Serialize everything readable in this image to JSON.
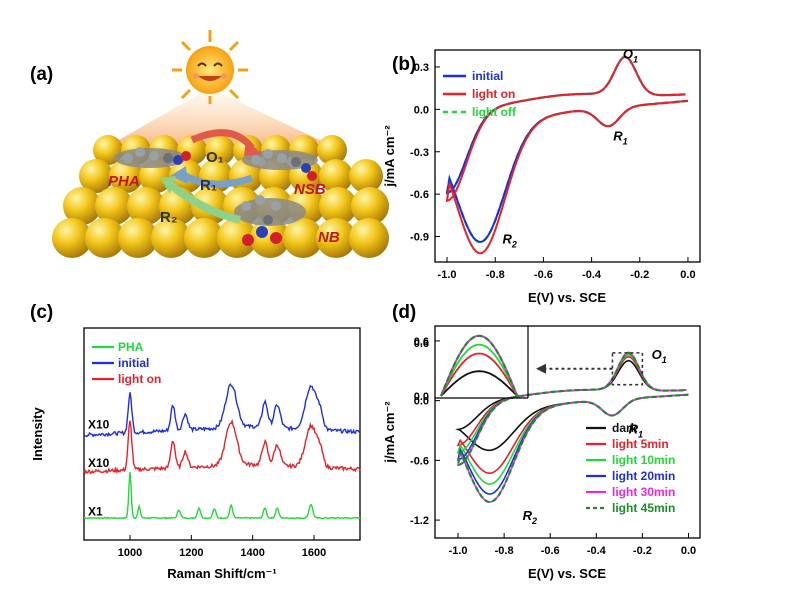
{
  "panels": {
    "a": {
      "label": "(a)",
      "molecules": [
        "PHA",
        "NSB",
        "NB"
      ],
      "reactions": [
        "O₁",
        "R₁",
        "R₂"
      ]
    }
  },
  "chart_data": [
    {
      "id": "b",
      "panel_label": "(b)",
      "type": "line",
      "xlabel": "E(V) vs. SCE",
      "ylabel": "j/mA cm⁻²",
      "xlim": [
        -1.05,
        0.05
      ],
      "ylim": [
        -1.08,
        0.42
      ],
      "xticks": [
        -1.0,
        -0.8,
        -0.6,
        -0.4,
        -0.2,
        0.0
      ],
      "xtick_labels": [
        "-1.0",
        "-0.8",
        "-0.6",
        "-0.4",
        "-0.2",
        "0.0"
      ],
      "yticks": [
        0.3,
        0.0,
        -0.3,
        -0.6,
        -0.9
      ],
      "ytick_labels": [
        "0.3",
        "0.0",
        "-0.3",
        "-0.6",
        "-0.9"
      ],
      "legend_position": "top-left",
      "annotations": [
        {
          "text": "O",
          "sub": "1",
          "x": -0.27,
          "y": 0.36
        },
        {
          "text": "R",
          "sub": "1",
          "x": -0.31,
          "y": -0.22
        },
        {
          "text": "R",
          "sub": "2",
          "x": -0.77,
          "y": -0.95
        }
      ],
      "series": [
        {
          "name": "initial",
          "color": "#1f2fe0",
          "dash": "solid",
          "scale": 1.0
        },
        {
          "name": "light on",
          "color": "#e8212a",
          "dash": "solid",
          "scale": 1.0,
          "r2_peak": -0.99
        },
        {
          "name": "light off",
          "color": "#22d83a",
          "dash": "dashed",
          "scale": 1.0
        }
      ]
    },
    {
      "id": "c",
      "panel_label": "(c)",
      "type": "line",
      "xlabel": "Raman Shift/cm⁻¹",
      "ylabel": "Intensity",
      "xlim": [
        850,
        1750
      ],
      "xticks": [
        1000,
        1200,
        1400,
        1600
      ],
      "xtick_labels": [
        "1000",
        "1200",
        "1400",
        "1600"
      ],
      "legend_position": "top-left",
      "series": [
        {
          "name": "PHA",
          "color": "#22d83a",
          "multiplier": "X1",
          "offset": 0.0,
          "amp": 0.55,
          "baseline": 0.0,
          "peaks": [
            [
              1000,
              1.0,
              4
            ],
            [
              1030,
              0.25,
              4
            ],
            [
              1160,
              0.18,
              5
            ],
            [
              1225,
              0.22,
              5
            ],
            [
              1275,
              0.2,
              5
            ],
            [
              1330,
              0.28,
              5
            ],
            [
              1440,
              0.22,
              5
            ],
            [
              1480,
              0.22,
              5
            ],
            [
              1590,
              0.3,
              6
            ]
          ]
        },
        {
          "name": "initial",
          "color": "#1f2fe0",
          "multiplier": "X10",
          "offset": 1.55,
          "amp": 0.55,
          "baseline": 0.35,
          "peaks": [
            [
              1000,
              0.85,
              6
            ],
            [
              1140,
              0.55,
              7
            ],
            [
              1180,
              0.35,
              8
            ],
            [
              1330,
              0.95,
              18
            ],
            [
              1440,
              0.55,
              9
            ],
            [
              1480,
              0.5,
              10
            ],
            [
              1590,
              0.95,
              18
            ],
            [
              1620,
              0.3,
              10
            ]
          ]
        },
        {
          "name": "light on",
          "color": "#e8212a",
          "multiplier": "X10",
          "offset": 0.85,
          "amp": 0.55,
          "baseline": 0.3,
          "peaks": [
            [
              1000,
              1.05,
              6
            ],
            [
              1140,
              0.6,
              7
            ],
            [
              1180,
              0.35,
              8
            ],
            [
              1330,
              0.95,
              18
            ],
            [
              1440,
              0.5,
              9
            ],
            [
              1480,
              0.45,
              10
            ],
            [
              1590,
              0.9,
              18
            ],
            [
              1620,
              0.3,
              10
            ]
          ]
        }
      ]
    },
    {
      "id": "d",
      "panel_label": "(d)",
      "type": "line",
      "xlabel": "E(V) vs. SCE",
      "ylabel": "j/mA cm⁻²",
      "xlim": [
        -1.1,
        0.05
      ],
      "ylim": [
        -1.38,
        0.75
      ],
      "xticks": [
        -1.0,
        -0.8,
        -0.6,
        -0.4,
        -0.2,
        0.0
      ],
      "xtick_labels": [
        "-1.0",
        "-0.8",
        "-0.6",
        "-0.4",
        "-0.2",
        "0.0"
      ],
      "yticks": [
        0.6,
        0.0,
        -0.6,
        -1.2
      ],
      "ytick_labels": [
        "0.6",
        "0.0",
        "-0.6",
        "-1.2"
      ],
      "legend_position": "bottom-right",
      "annotations": [
        {
          "text": "O",
          "sub": "1",
          "x": -0.16,
          "y": 0.42
        },
        {
          "text": "R",
          "sub": "1",
          "x": -0.26,
          "y": -0.33
        },
        {
          "text": "R",
          "sub": "2",
          "x": -0.72,
          "y": -1.2
        }
      ],
      "series": [
        {
          "name": "dark",
          "color": "#111111",
          "dash": "solid",
          "r2_peak": -0.72,
          "o1_peak": 0.3
        },
        {
          "name": "light 5min",
          "color": "#e8212a",
          "dash": "solid",
          "r2_peak": -0.95,
          "o1_peak": 0.34
        },
        {
          "name": "light 10min",
          "color": "#22d83a",
          "dash": "solid",
          "r2_peak": -1.06,
          "o1_peak": 0.36
        },
        {
          "name": "light 20min",
          "color": "#1f2fe0",
          "dash": "solid",
          "r2_peak": -1.16,
          "o1_peak": 0.38
        },
        {
          "name": "light 30min",
          "color": "#e829e0",
          "dash": "solid",
          "r2_peak": -1.24,
          "o1_peak": 0.38
        },
        {
          "name": "light 45min",
          "color": "#1f8a2a",
          "dash": "dashed",
          "r2_peak": -1.24,
          "o1_peak": 0.38
        }
      ],
      "inset": {
        "yticks": [
          0.6,
          0.0
        ],
        "ytick_labels": [
          "0.6",
          "0.0"
        ]
      }
    }
  ]
}
